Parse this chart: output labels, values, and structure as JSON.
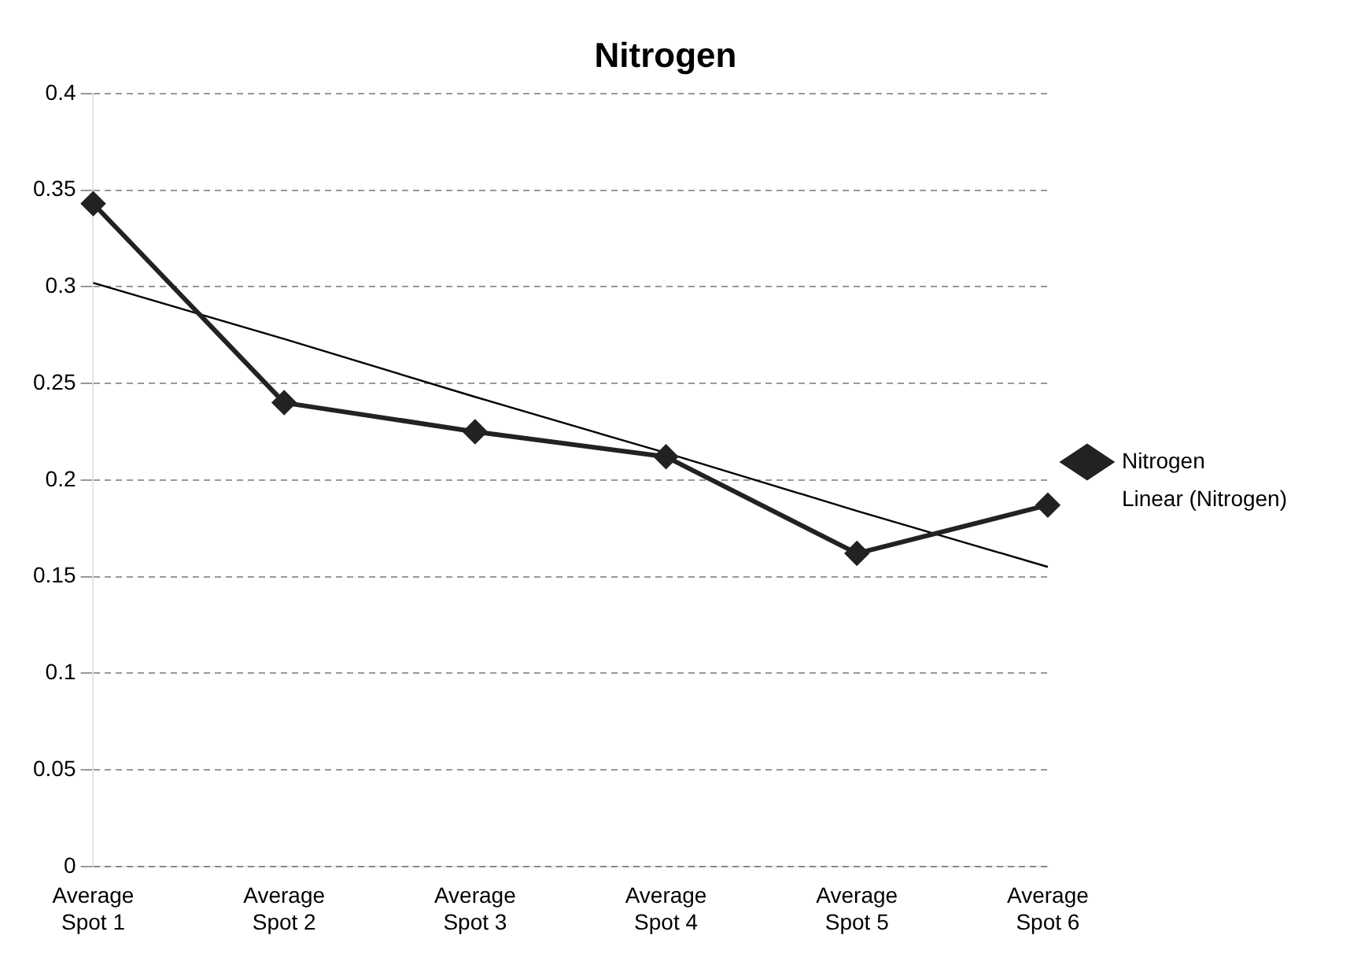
{
  "chart_data": {
    "type": "line",
    "title": "Nitrogen",
    "categories": [
      "Average Spot 1",
      "Average Spot 2",
      "Average Spot 3",
      "Average Spot 4",
      "Average Spot 5",
      "Average Spot 6"
    ],
    "series": [
      {
        "name": "Nitrogen",
        "color": "#222222",
        "values": [
          0.343,
          0.24,
          0.225,
          0.212,
          0.162,
          0.187
        ],
        "marker": "diamond"
      },
      {
        "name": "Linear (Nitrogen)",
        "color": "#000000",
        "values": [
          0.302,
          0.273,
          0.243,
          0.214,
          0.184,
          0.155
        ],
        "marker": "none"
      }
    ],
    "ylim": [
      0,
      0.4
    ],
    "yticks": [
      0,
      0.05,
      0.1,
      0.15,
      0.2,
      0.25,
      0.3,
      0.35,
      0.4
    ],
    "grid": "y",
    "legend": "right"
  }
}
